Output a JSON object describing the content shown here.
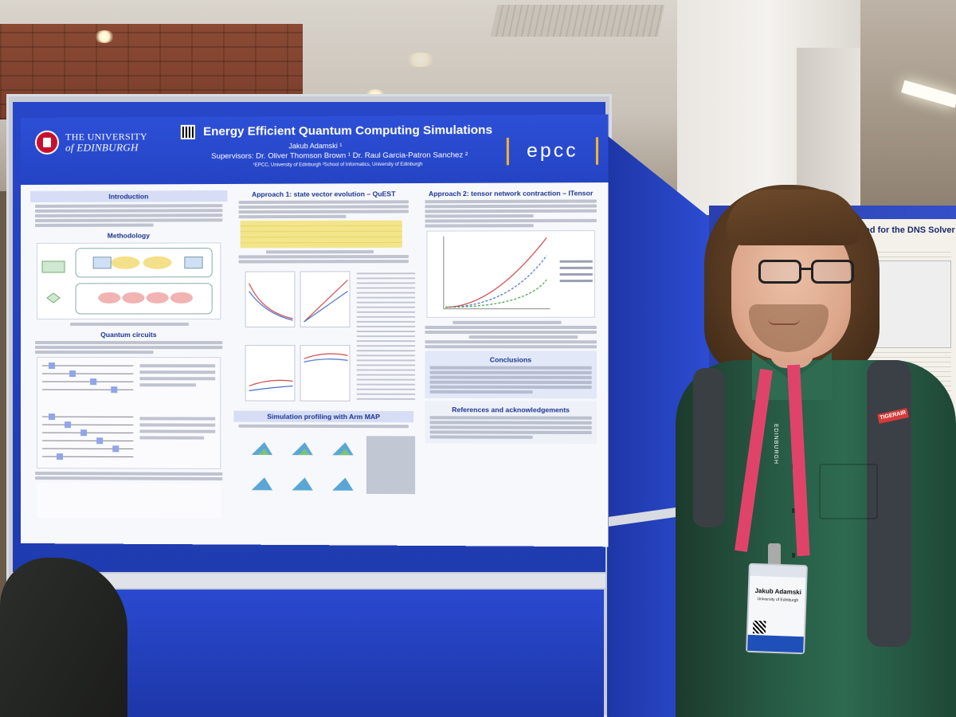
{
  "poster": {
    "university": [
      "THE UNIVERSITY",
      "of EDINBURGH"
    ],
    "title": "Energy Efficient Quantum Computing Simulations",
    "author": "Jakub Adamski ¹",
    "supervisors": "Supervisors:   Dr. Oliver Thomson Brown ¹     Dr. Raul Garcia-Patron Sanchez ²",
    "affiliations": "¹EPCC, University of Edinburgh     ²School of Informatics, University of Edinburgh",
    "logo": "epcc",
    "sections": {
      "introduction": "Introduction",
      "methodology": "Methodology",
      "quantum_circuits": "Quantum circuits",
      "approach1": "Approach 1: state vector evolution – QuEST",
      "profiling": "Simulation profiling with Arm MAP",
      "approach2": "Approach 2: tensor network contraction – ITensor",
      "conclusions": "Conclusions",
      "references": "References and acknowledgements"
    }
  },
  "back_poster": {
    "title": "ry Method for the DNS Solver CH"
  },
  "badge": {
    "name": "Jakub Adamski",
    "org": "University of Edinburgh"
  },
  "lanyard_text": "EDINBURGH",
  "strap_tag": "TIGERAIR",
  "colors": {
    "poster_blue": "#2444c4",
    "board_blue": "#1f3bb0",
    "epcc_accent": "#f2b233",
    "shirt_green": "#2d6a50",
    "lanyard_pink": "#e0436a"
  }
}
